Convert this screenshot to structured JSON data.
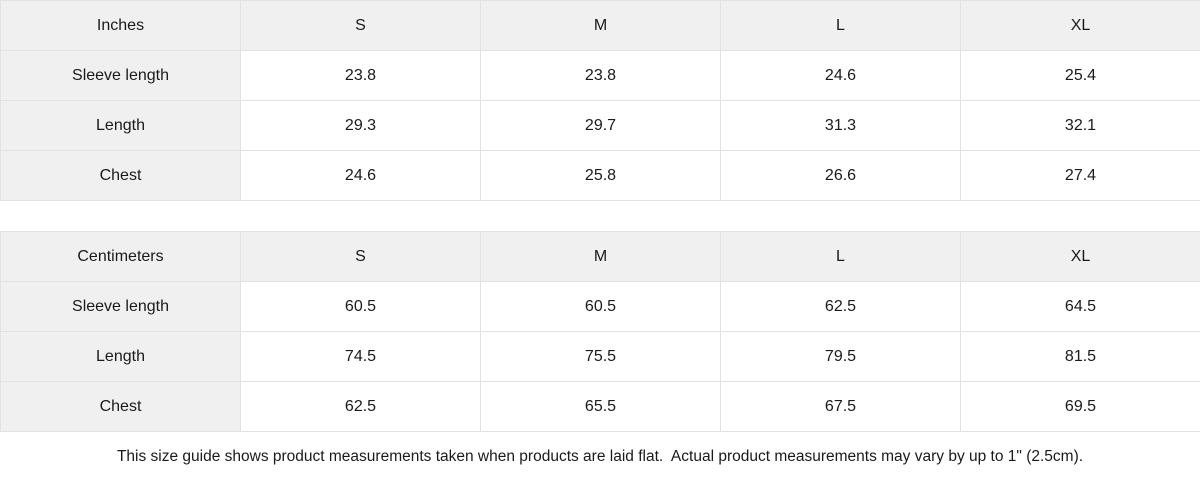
{
  "tables": [
    {
      "unit_label": "Inches",
      "sizes": [
        "S",
        "M",
        "L",
        "XL"
      ],
      "rows": [
        {
          "label": "Sleeve length",
          "values": [
            "23.8",
            "23.8",
            "24.6",
            "25.4"
          ]
        },
        {
          "label": "Length",
          "values": [
            "29.3",
            "29.7",
            "31.3",
            "32.1"
          ]
        },
        {
          "label": "Chest",
          "values": [
            "24.6",
            "25.8",
            "26.6",
            "27.4"
          ]
        }
      ]
    },
    {
      "unit_label": "Centimeters",
      "sizes": [
        "S",
        "M",
        "L",
        "XL"
      ],
      "rows": [
        {
          "label": "Sleeve length",
          "values": [
            "60.5",
            "60.5",
            "62.5",
            "64.5"
          ]
        },
        {
          "label": "Length",
          "values": [
            "74.5",
            "75.5",
            "79.5",
            "81.5"
          ]
        },
        {
          "label": "Chest",
          "values": [
            "62.5",
            "65.5",
            "67.5",
            "69.5"
          ]
        }
      ]
    }
  ],
  "footer": {
    "note": "This size guide shows product measurements taken when products are laid flat.  Actual product measurements may vary by up to 1\" (2.5cm)."
  },
  "colors": {
    "header_bg": "#f0f0f0",
    "border": "#e2e2e2",
    "text": "#1a1a1a",
    "page_bg": "#ffffff"
  }
}
